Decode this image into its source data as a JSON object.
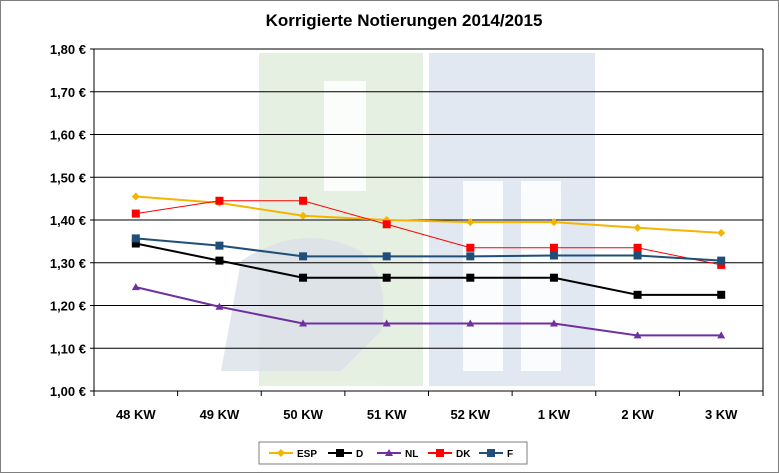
{
  "chart_data": {
    "type": "line",
    "title": "Korrigierte Notierungen 2014/2015",
    "categories": [
      "48 KW",
      "49 KW",
      "50 KW",
      "51 KW",
      "52 KW",
      "1 KW",
      "2 KW",
      "3 KW"
    ],
    "y_ticks": [
      "1,00 €",
      "1,10 €",
      "1,20 €",
      "1,30 €",
      "1,40 €",
      "1,50 €",
      "1,60 €",
      "1,70 €",
      "1,80 €"
    ],
    "ylim": [
      1.0,
      1.8
    ],
    "grid": true,
    "legend_position": "bottom",
    "watermark": "ISN",
    "series": [
      {
        "name": "ESP",
        "color": "#f5b400",
        "marker": "diamond",
        "values": [
          1.455,
          1.44,
          1.41,
          1.4,
          1.395,
          1.395,
          1.382,
          1.37
        ]
      },
      {
        "name": "D",
        "color": "#000000",
        "marker": "square",
        "values": [
          1.345,
          1.305,
          1.265,
          1.265,
          1.265,
          1.265,
          1.225,
          1.225
        ]
      },
      {
        "name": "NL",
        "color": "#7030a0",
        "marker": "triangle",
        "values": [
          1.243,
          1.197,
          1.158,
          1.158,
          1.158,
          1.158,
          1.13,
          1.13
        ]
      },
      {
        "name": "DK",
        "color": "#ff0000",
        "marker": "square",
        "values": [
          1.415,
          1.445,
          1.445,
          1.39,
          1.335,
          1.335,
          1.335,
          1.295
        ]
      },
      {
        "name": "F",
        "color": "#1f4e79",
        "marker": "square",
        "values": [
          1.357,
          1.34,
          1.315,
          1.315,
          1.315,
          1.317,
          1.317,
          1.305
        ]
      }
    ]
  }
}
